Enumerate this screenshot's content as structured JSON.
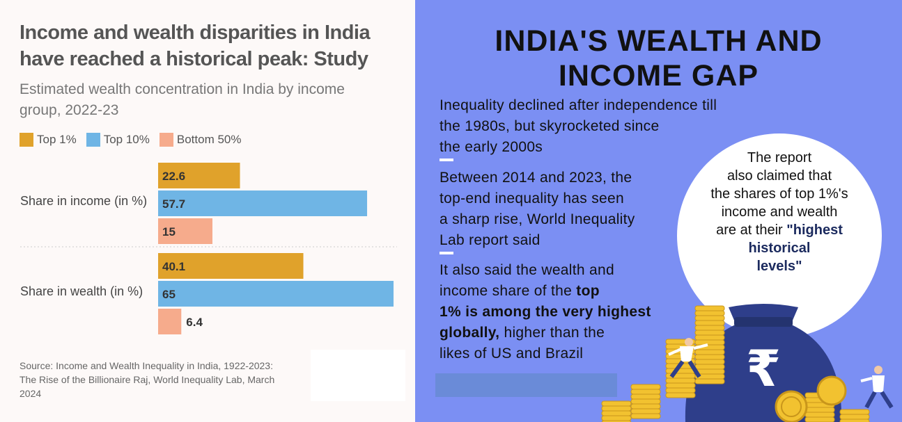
{
  "left_panel": {
    "title_line1": "Income and wealth disparities in India",
    "title_line2": "have reached a historical peak: Study",
    "subtitle_line1": "Estimated wealth concentration in India by income",
    "subtitle_line2": "group, 2022-23",
    "source_line1": "Source: Income and Wealth Inequality in India, 1922-2023:",
    "source_line2": "The Rise of the Billionaire Raj, World Inequality Lab, March",
    "source_line3": "2024"
  },
  "chart_data": {
    "type": "bar",
    "orientation": "horizontal",
    "categories": [
      "Share in income (in %)",
      "Share in wealth (in %)"
    ],
    "series": [
      {
        "name": "Top 1%",
        "color": "#e0a22b",
        "values": [
          22.6,
          40.1
        ]
      },
      {
        "name": "Top 10%",
        "color": "#6fb5e5",
        "values": [
          57.7,
          65
        ]
      },
      {
        "name": "Bottom 50%",
        "color": "#f6ab8c",
        "values": [
          15,
          6.4
        ]
      }
    ],
    "value_labels": [
      [
        "22.6",
        "40.1"
      ],
      [
        "57.7",
        "65"
      ],
      [
        "15",
        "6.4"
      ]
    ],
    "xlim": [
      0,
      65
    ],
    "grid": false,
    "legend_position": "top-left"
  },
  "right_panel": {
    "title_line1": "INDIA'S WEALTH AND",
    "title_line2": "INCOME GAP",
    "block1": [
      "Inequality declined after independence till",
      "the 1980s, but skyrocketed since",
      "the early 2000s"
    ],
    "block2": [
      "Between 2014 and 2023, the",
      "top-end inequality has seen",
      "a sharp rise, World Inequality",
      "Lab report said"
    ],
    "block3_line1": "It also said the wealth and",
    "block3_line2_pre": "income share of the ",
    "block3_line2_bold": "top",
    "block3_line3_bold": "1% is among the very highest",
    "block3_line4_bold": "globally,",
    "block3_line4_post": " higher than the",
    "block3_line5": "likes of US and Brazil",
    "circle_line1": "The report",
    "circle_line2": "also claimed that",
    "circle_line3": "the shares of top 1%'s",
    "circle_line4": "income and wealth",
    "circle_line5_pre": "are at their ",
    "circle_line5_hl": "\"highest",
    "circle_line6_hl": "historical",
    "circle_line7_hl": "levels\"",
    "rupee_symbol": "₹"
  },
  "colors": {
    "right_background": "#7b8ff3",
    "money_bag": "#2e3e8a",
    "coin": "#f2c230"
  }
}
